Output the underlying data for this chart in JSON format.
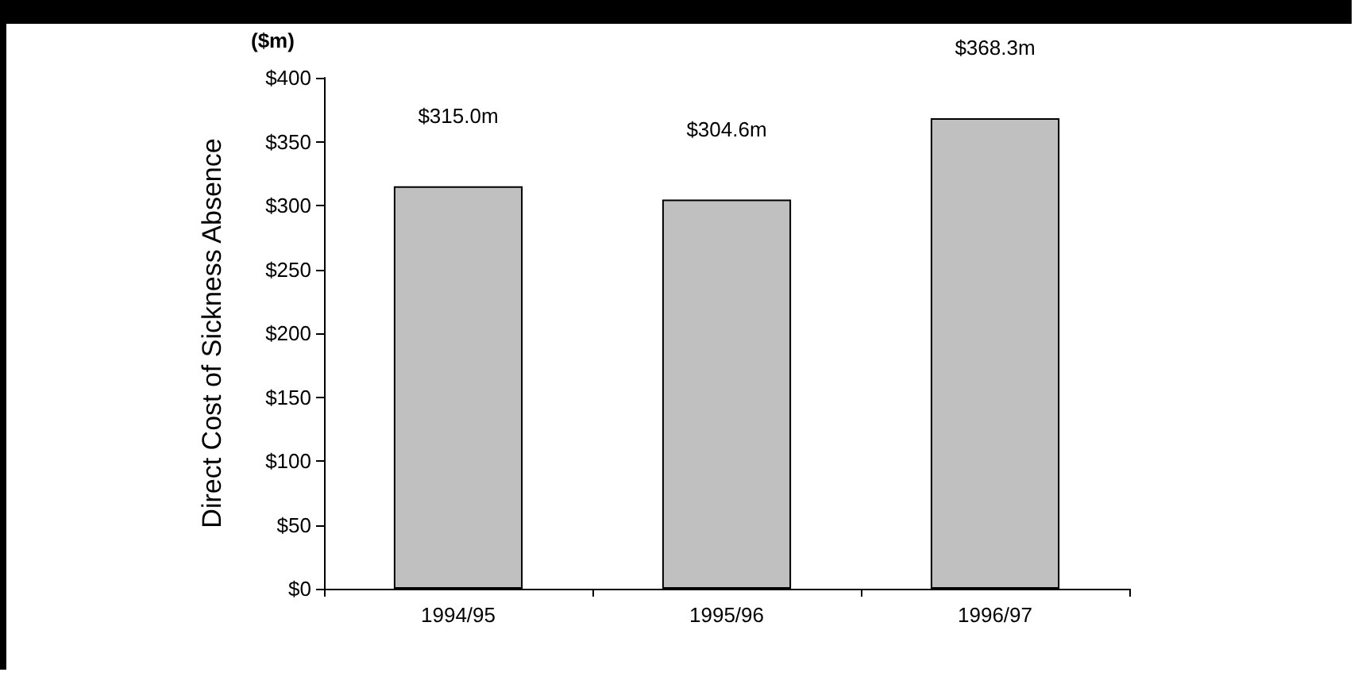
{
  "chart_data": {
    "type": "bar",
    "ylabel": "Direct Cost of Sickness Absence",
    "annotations": [
      "($m)"
    ],
    "categories": [
      "1994/95",
      "1995/96",
      "1996/97"
    ],
    "values": [
      315.0,
      304.6,
      368.3
    ],
    "color": "#c0c0c0",
    "value_labels": [
      "$315.0m",
      "$304.6m",
      "$368.3m"
    ],
    "ylim": [
      0,
      400
    ],
    "yticks": [
      {
        "value": 0,
        "label": "$0"
      },
      {
        "value": 50,
        "label": "$50"
      },
      {
        "value": 100,
        "label": "$100"
      },
      {
        "value": 150,
        "label": "$150"
      },
      {
        "value": 200,
        "label": "$200"
      },
      {
        "value": 250,
        "label": "$250"
      },
      {
        "value": 300,
        "label": "$300"
      },
      {
        "value": 350,
        "label": "$350"
      },
      {
        "value": 400,
        "label": "$400"
      }
    ],
    "grid": false
  }
}
